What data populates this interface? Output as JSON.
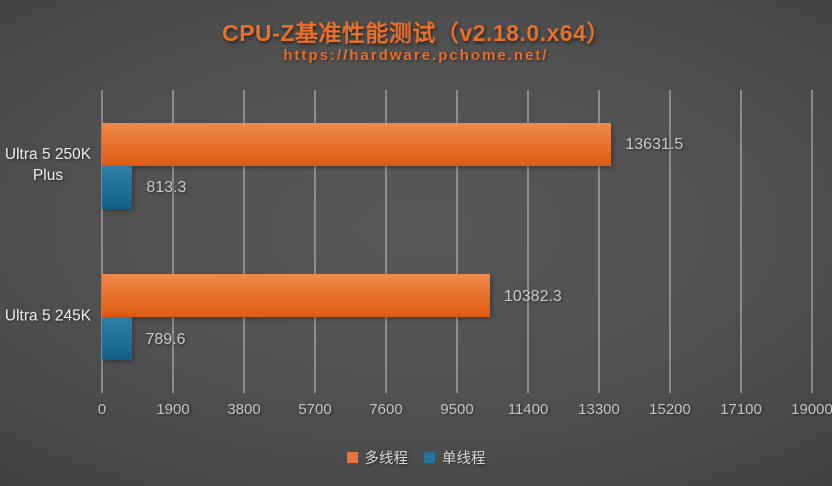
{
  "header": {
    "title": "CPU-Z基准性能测试（v2.18.0.x64）",
    "subtitle": "https://hardware.pchome.net/"
  },
  "colors": {
    "title_text": "#e8702b",
    "multi_bar_top": "#f08a4d",
    "multi_bar_bottom": "#de5b12",
    "single_bar_top": "#2f7da6",
    "single_bar_bottom": "#115e86",
    "legend_multi_swatch": "#e9743b",
    "legend_single_swatch": "#27729b",
    "gridline": "#bebebe",
    "tick_text": "#c6c6c6",
    "value_text": "#cccccc",
    "category_text": "#f0f0f0",
    "background_center": "#585858",
    "background_edge": "#222222"
  },
  "chart_data": {
    "type": "bar",
    "orientation": "horizontal",
    "title": "CPU-Z基准性能测试（v2.18.0.x64）",
    "subtitle": "https://hardware.pchome.net/",
    "categories": [
      "Ultra 5 250K Plus",
      "Ultra 5 245K"
    ],
    "series": [
      {
        "name": "多线程",
        "key": "multi",
        "values": [
          13631.5,
          10382.3
        ]
      },
      {
        "name": "单线程",
        "key": "single",
        "values": [
          813.3,
          789.6
        ]
      }
    ],
    "xlim": [
      0,
      19000
    ],
    "xticks": [
      0,
      1900,
      3800,
      5700,
      7600,
      9500,
      11400,
      13300,
      15200,
      17100,
      19000
    ],
    "grid": "vertical",
    "legend_position": "bottom"
  },
  "layout_note": ""
}
